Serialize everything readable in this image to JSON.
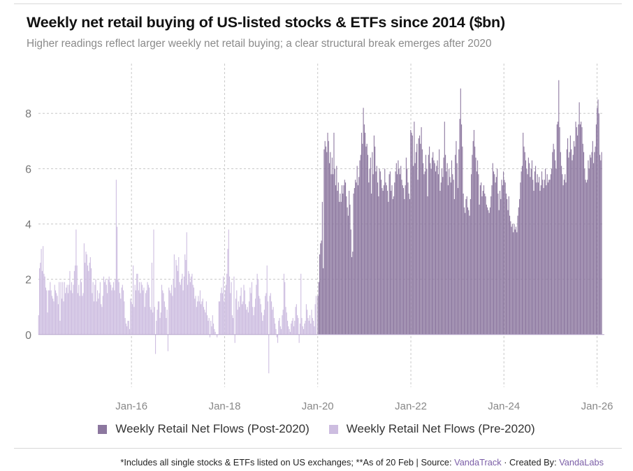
{
  "title": "Weekly net retail buying of US-listed stocks & ETFs since 2014 ($bn)",
  "subtitle": "Higher readings reflect larger weekly net retail buying; a clear structural break emerges after 2020",
  "footer": {
    "note": "*Includes all single stocks & ETFs listed on US exchanges; **As of 20 Feb | Source: ",
    "source": "VandaTrack",
    "sep": " · Created By: ",
    "creator": "VandaLabs"
  },
  "colors": {
    "post": "#8c779f",
    "pre": "#cdbde0",
    "grid": "#c8c8c8",
    "link": "#7b5ea7"
  },
  "chart_data": {
    "type": "bar",
    "title": "Weekly net retail buying of US-listed stocks & ETFs since 2014 ($bn)",
    "xlabel": "",
    "ylabel": "",
    "frequency": "weekly",
    "xlim": [
      "2014-01-01",
      "2026-02-27"
    ],
    "ylim": [
      -1.9,
      9.8
    ],
    "yticks": [
      0,
      2,
      4,
      6,
      8
    ],
    "xticks": [
      {
        "date": "2016-01-01",
        "label": "Jan-16"
      },
      {
        "date": "2018-01-01",
        "label": "Jan-18"
      },
      {
        "date": "2020-01-01",
        "label": "Jan-20"
      },
      {
        "date": "2022-01-01",
        "label": "Jan-22"
      },
      {
        "date": "2024-01-01",
        "label": "Jan-24"
      },
      {
        "date": "2026-01-01",
        "label": "Jan-26"
      }
    ],
    "grid": true,
    "legend_position": "bottom",
    "series": [
      {
        "name": "Weekly Retail Net Flows (Post-2020)",
        "color": "#8c779f",
        "start": "2020-01-03",
        "values": [
          1.4,
          1.9,
          2.9,
          3.3,
          3.4,
          4.8,
          2.4,
          6.7,
          7.0,
          6.8,
          6.6,
          7.3,
          7.0,
          6.2,
          6.6,
          5.8,
          6.4,
          5.8,
          7.3,
          6.0,
          5.4,
          6.1,
          5.2,
          5.5,
          4.8,
          5.1,
          4.8,
          5.4,
          5.1,
          5.4,
          5.6,
          5.5,
          5.0,
          4.6,
          4.3,
          5.2,
          4.7,
          3.8,
          2.8,
          3.0,
          5.1,
          5.3,
          5.6,
          5.5,
          6.1,
          5.4,
          5.7,
          6.3,
          6.5,
          7.3,
          6.9,
          8.2,
          7.6,
          7.3,
          6.8,
          6.9,
          6.5,
          5.5,
          6.0,
          6.4,
          5.1,
          6.6,
          5.8,
          7.2,
          6.8,
          5.9,
          6.1,
          5.5,
          5.0,
          6.0,
          5.9,
          5.6,
          5.3,
          5.2,
          5.4,
          6.0,
          5.5,
          5.4,
          5.2,
          4.8,
          5.8,
          5.9,
          5.2,
          5.4,
          4.9,
          5.0,
          5.5,
          5.9,
          6.2,
          5.8,
          6.3,
          6.0,
          5.8,
          6.1,
          5.6,
          5.4,
          5.3,
          4.9,
          5.4,
          6.4,
          6.0,
          5.5,
          5.1,
          4.9,
          7.4,
          7.3,
          7.2,
          6.1,
          7.7,
          6.2,
          6.6,
          6.9,
          5.6,
          7.1,
          7.2,
          6.9,
          7.5,
          6.7,
          6.2,
          5.8,
          5.9,
          6.5,
          6.0,
          5.0,
          6.5,
          6.8,
          6.2,
          6.0,
          6.4,
          6.6,
          6.3,
          6.2,
          5.9,
          6.1,
          6.3,
          5.8,
          6.7,
          5.2,
          5.5,
          6.0,
          5.7,
          6.4,
          7.7,
          6.5,
          5.9,
          6.2,
          5.4,
          6.0,
          5.7,
          5.5,
          6.3,
          5.8,
          5.6,
          4.9,
          6.5,
          7.0,
          6.2,
          5.3,
          6.7,
          7.8,
          8.9,
          7.6,
          6.8,
          5.1,
          4.6,
          4.4,
          4.9,
          5.0,
          4.6,
          4.5,
          4.3,
          4.9,
          5.8,
          6.5,
          7.0,
          7.4,
          6.8,
          6.4,
          5.9,
          6.3,
          5.8,
          4.7,
          5.4,
          5.5,
          5.0,
          5.2,
          5.4,
          5.1,
          5.0,
          4.7,
          4.6,
          4.5,
          4.4,
          4.6,
          5.0,
          5.4,
          6.2,
          5.9,
          5.8,
          5.5,
          5.7,
          6.0,
          5.1,
          4.5,
          5.2,
          4.9,
          5.6,
          5.4,
          5.9,
          5.6,
          5.5,
          5.1,
          4.9,
          4.5,
          5.0,
          4.3,
          4.1,
          3.9,
          4.0,
          3.7,
          4.0,
          3.8,
          3.9,
          3.7,
          4.3,
          4.6,
          4.9,
          5.5,
          5.9,
          6.1,
          7.3,
          6.8,
          6.6,
          6.3,
          6.0,
          5.8,
          6.4,
          6.2,
          5.7,
          6.0,
          6.3,
          5.6,
          5.2,
          5.9,
          6.1,
          5.5,
          5.8,
          5.5,
          5.7,
          5.2,
          5.4,
          5.9,
          5.6,
          5.3,
          5.6,
          6.0,
          5.4,
          5.8,
          5.5,
          5.6,
          5.6,
          5.8,
          6.0,
          6.6,
          6.9,
          6.7,
          6.3,
          6.0,
          7.6,
          7.7,
          9.2,
          7.5,
          6.6,
          6.1,
          5.8,
          5.4,
          5.6,
          5.8,
          5.5,
          6.7,
          7.1,
          6.4,
          6.6,
          7.2,
          6.7,
          6.3,
          6.5,
          7.0,
          6.8,
          7.7,
          7.5,
          7.2,
          7.6,
          8.4,
          7.6,
          7.7,
          7.5,
          6.9,
          6.6,
          6.0,
          5.6,
          5.5,
          5.6,
          6.3,
          6.0,
          6.5,
          6.4,
          6.6,
          7.0,
          6.2,
          6.6,
          6.8,
          7.6,
          8.2,
          8.5,
          8.0,
          6.5,
          6.3,
          6.6
        ]
      },
      {
        "name": "Weekly Retail Net Flows (Pre-2020)",
        "color": "#cdbde0",
        "start": "2014-01-03",
        "values": [
          0.7,
          2.4,
          2.6,
          3.1,
          2.3,
          3.2,
          2.2,
          2.1,
          1.7,
          1.6,
          0.8,
          1.6,
          1.6,
          1.9,
          1.6,
          1.4,
          1.3,
          1.2,
          1.8,
          1.6,
          1.5,
          1.4,
          1.1,
          1.9,
          0.5,
          1.9,
          1.3,
          1.9,
          1.2,
          1.9,
          1.5,
          1.7,
          1.8,
          1.5,
          1.8,
          2.3,
          1.6,
          1.9,
          1.5,
          1.8,
          2.3,
          2.5,
          3.8,
          2.5,
          1.5,
          1.8,
          1.4,
          2.0,
          1.9,
          1.4,
          1.5,
          3.3,
          2.6,
          3.0,
          2.9,
          2.5,
          2.3,
          2.6,
          2.8,
          2.4,
          1.5,
          1.9,
          1.2,
          1.8,
          2.0,
          1.2,
          1.6,
          1.3,
          1.5,
          1.9,
          1.1,
          1.0,
          1.4,
          2.1,
          1.9,
          2.0,
          1.8,
          1.5,
          2.0,
          2.1,
          1.9,
          1.8,
          1.6,
          1.7,
          1.9,
          1.6,
          2.0,
          5.6,
          3.9,
          2.0,
          1.9,
          1.5,
          1.3,
          1.7,
          1.8,
          1.6,
          1.2,
          0.6,
          0.4,
          0.3,
          0.5,
          0.5,
          0.2,
          1.3,
          1.2,
          1.1,
          2.5,
          1.0,
          1.8,
          1.6,
          2.2,
          2.2,
          1.6,
          1.9,
          1.5,
          1.9,
          1.8,
          1.6,
          1.7,
          1.0,
          1.5,
          1.6,
          1.9,
          1.8,
          1.7,
          1.0,
          0.9,
          2.6,
          0.8,
          3.8,
          1.0,
          -0.7,
          0.5,
          0.9,
          1.2,
          1.2,
          0.6,
          0.8,
          1.8,
          1.6,
          1.5,
          1.2,
          1.0,
          0.6,
          0.9,
          -0.6,
          1.7,
          1.6,
          1.5,
          1.8,
          1.4,
          2.0,
          2.9,
          1.7,
          2.7,
          2.5,
          2.3,
          2.8,
          1.9,
          1.8,
          2.0,
          2.2,
          1.6,
          2.1,
          2.9,
          2.7,
          3.7,
          1.8,
          2.3,
          2.2,
          1.9,
          2.1,
          2.2,
          1.8,
          1.7,
          1.3,
          1.4,
          1.0,
          1.2,
          1.4,
          1.2,
          1.6,
          1.1,
          1.2,
          1.3,
          1.0,
          0.9,
          0.8,
          1.2,
          0.7,
          0.5,
          0.6,
          -0.1,
          0.5,
          0.3,
          0.7,
          0.4,
          0.2,
          0.1,
          0.0,
          -0.1,
          0.0,
          1.2,
          1.2,
          1.5,
          1.7,
          1.5,
          2.1,
          1.2,
          1.6,
          1.8,
          2.2,
          3.1,
          3.8,
          2.1,
          1.5,
          1.9,
          0.7,
          0.6,
          2.1,
          -0.3,
          1.3,
          1.6,
          0.9,
          1.2,
          1.0,
          1.4,
          1.7,
          1.1,
          1.2,
          1.8,
          1.6,
          1.1,
          0.9,
          1.0,
          0.8,
          1.2,
          1.7,
          1.5,
          1.9,
          1.0,
          0.7,
          1.0,
          1.3,
          1.8,
          2.2,
          2.0,
          1.4,
          1.3,
          1.1,
          0.8,
          0.5,
          0.7,
          0.9,
          1.4,
          1.5,
          2.5,
          1.2,
          -1.4,
          1.4,
          1.5,
          1.2,
          0.9,
          1.0,
          0.6,
          0.4,
          0.2,
          -0.1,
          -0.3,
          0.5,
          0.6,
          0.3,
          0.2,
          0.7,
          0.9,
          2.2,
          1.9,
          1.0,
          0.8,
          0.5,
          0.3,
          0.2,
          0.1,
          0.4,
          0.5,
          0.6,
          0.3,
          0.5,
          1.0,
          1.1,
          0.7,
          0.6,
          -0.3,
          0.4,
          2.2,
          0.6,
          0.3,
          0.2,
          0.4,
          0.5,
          1.1,
          0.9,
          0.6,
          0.5,
          0.7,
          0.4,
          0.9,
          0.6,
          0.5,
          0.3,
          1.1,
          1.4
        ]
      }
    ]
  }
}
